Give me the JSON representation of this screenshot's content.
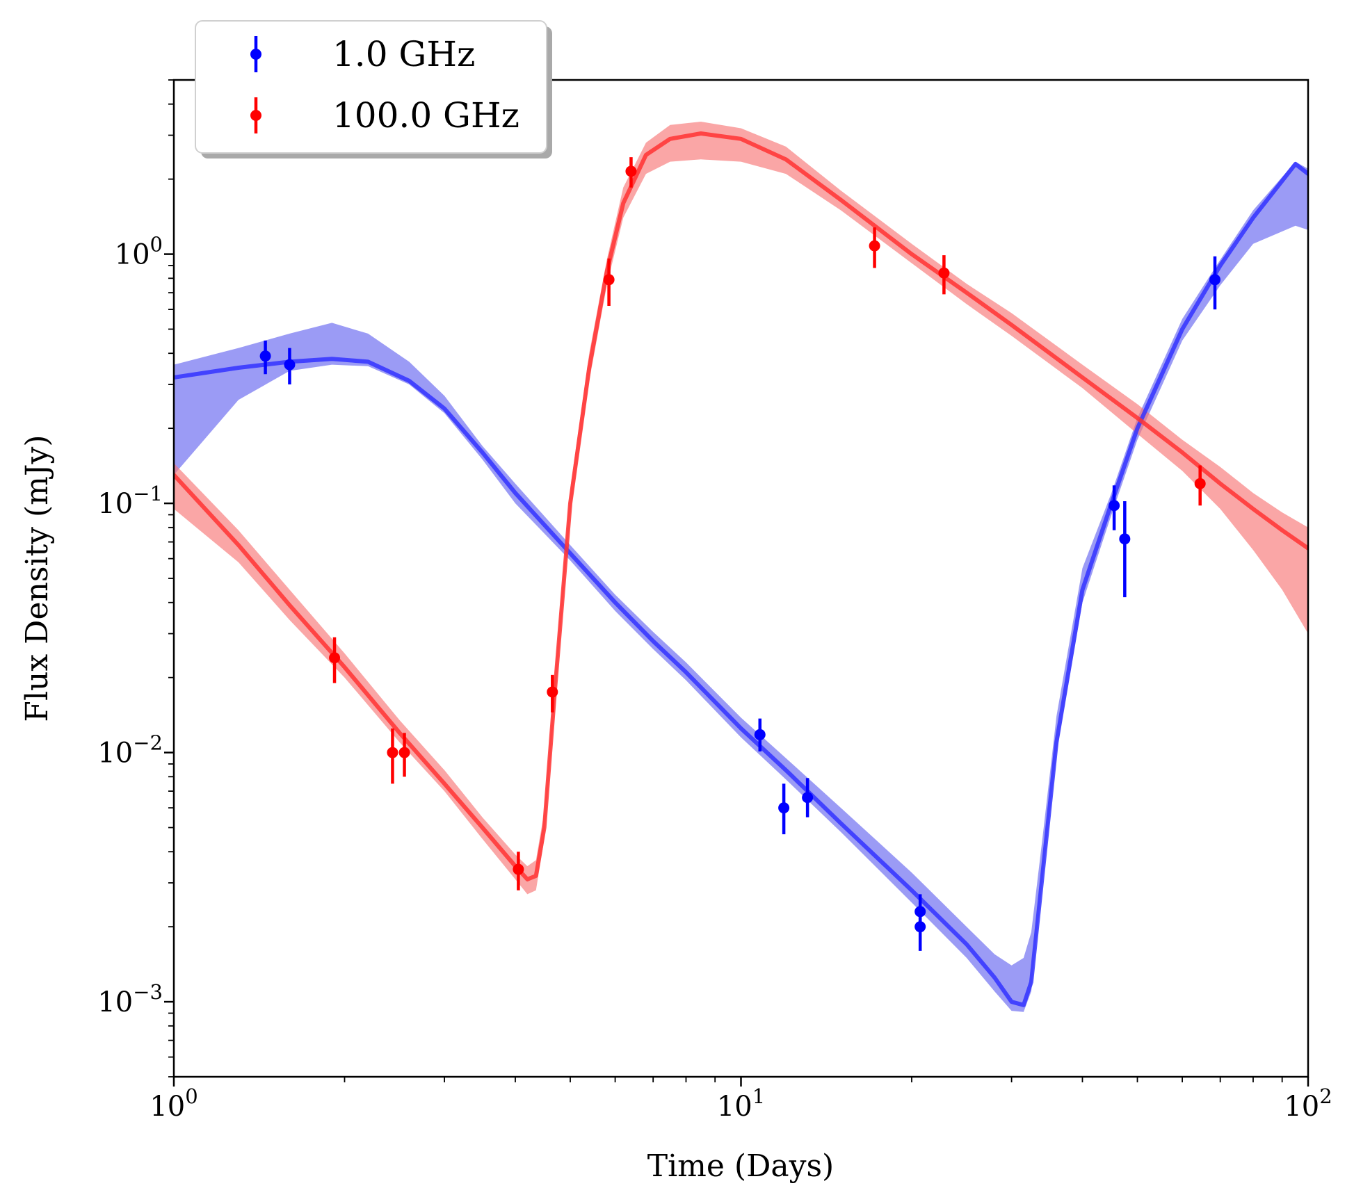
{
  "chart_data": {
    "type": "line",
    "title": "",
    "xlabel": "Time (Days)",
    "ylabel": "Flux Density (mJy)",
    "xscale": "log",
    "yscale": "log",
    "xlim": [
      1,
      100
    ],
    "ylim": [
      0.0005,
      5
    ],
    "grid": false,
    "legend": {
      "position": "top-left",
      "entries": [
        "1.0 GHz",
        "100.0 GHz"
      ]
    },
    "x_ticks": [
      {
        "value": 1,
        "base": "10",
        "exp": "0"
      },
      {
        "value": 10,
        "base": "10",
        "exp": "1"
      },
      {
        "value": 100,
        "base": "10",
        "exp": "2"
      }
    ],
    "y_ticks": [
      {
        "value": 0.001,
        "base": "10",
        "exp": "−3"
      },
      {
        "value": 0.01,
        "base": "10",
        "exp": "−2"
      },
      {
        "value": 0.1,
        "base": "10",
        "exp": "−1"
      },
      {
        "value": 1,
        "base": "10",
        "exp": "0"
      }
    ],
    "series": [
      {
        "name": "1.0 GHz",
        "color": "#0000ff",
        "model_color": "#3333ff",
        "band_color": "#6666f0",
        "points": [
          {
            "x": 1.45,
            "y": 0.39,
            "ylo": 0.33,
            "yhi": 0.45
          },
          {
            "x": 1.6,
            "y": 0.36,
            "ylo": 0.3,
            "yhi": 0.42
          },
          {
            "x": 10.8,
            "y": 0.0118,
            "ylo": 0.0101,
            "yhi": 0.0137
          },
          {
            "x": 11.9,
            "y": 0.006,
            "ylo": 0.0047,
            "yhi": 0.0075
          },
          {
            "x": 13.1,
            "y": 0.0066,
            "ylo": 0.0055,
            "yhi": 0.0079
          },
          {
            "x": 20.7,
            "y": 0.0023,
            "ylo": 0.0019,
            "yhi": 0.0027
          },
          {
            "x": 20.7,
            "y": 0.002,
            "ylo": 0.0016,
            "yhi": 0.0024
          },
          {
            "x": 45.5,
            "y": 0.098,
            "ylo": 0.078,
            "yhi": 0.118
          },
          {
            "x": 47.5,
            "y": 0.072,
            "ylo": 0.042,
            "yhi": 0.102
          },
          {
            "x": 68.5,
            "y": 0.79,
            "ylo": 0.6,
            "yhi": 0.98
          }
        ],
        "model": [
          {
            "x": 1.0,
            "y": 0.32,
            "lo": 0.13,
            "hi": 0.36
          },
          {
            "x": 1.3,
            "y": 0.35,
            "lo": 0.26,
            "hi": 0.42
          },
          {
            "x": 1.6,
            "y": 0.37,
            "lo": 0.34,
            "hi": 0.48
          },
          {
            "x": 1.9,
            "y": 0.38,
            "lo": 0.36,
            "hi": 0.53
          },
          {
            "x": 2.2,
            "y": 0.37,
            "lo": 0.355,
            "hi": 0.48
          },
          {
            "x": 2.6,
            "y": 0.31,
            "lo": 0.3,
            "hi": 0.37
          },
          {
            "x": 3.0,
            "y": 0.24,
            "lo": 0.23,
            "hi": 0.27
          },
          {
            "x": 3.5,
            "y": 0.16,
            "lo": 0.15,
            "hi": 0.17
          },
          {
            "x": 4.0,
            "y": 0.11,
            "lo": 0.1,
            "hi": 0.12
          },
          {
            "x": 5.0,
            "y": 0.063,
            "lo": 0.059,
            "hi": 0.068
          },
          {
            "x": 6.0,
            "y": 0.04,
            "lo": 0.037,
            "hi": 0.043
          },
          {
            "x": 7.0,
            "y": 0.028,
            "lo": 0.026,
            "hi": 0.0305
          },
          {
            "x": 8.0,
            "y": 0.021,
            "lo": 0.0195,
            "hi": 0.023
          },
          {
            "x": 10.0,
            "y": 0.0125,
            "lo": 0.0115,
            "hi": 0.0138
          },
          {
            "x": 12.0,
            "y": 0.0085,
            "lo": 0.0078,
            "hi": 0.0095
          },
          {
            "x": 15.0,
            "y": 0.0052,
            "lo": 0.0048,
            "hi": 0.006
          },
          {
            "x": 20.0,
            "y": 0.0028,
            "lo": 0.0025,
            "hi": 0.0033
          },
          {
            "x": 25.0,
            "y": 0.0017,
            "lo": 0.0015,
            "hi": 0.002
          },
          {
            "x": 28.0,
            "y": 0.00125,
            "lo": 0.0011,
            "hi": 0.00155
          },
          {
            "x": 30.0,
            "y": 0.001,
            "lo": 0.00092,
            "hi": 0.0014
          },
          {
            "x": 31.5,
            "y": 0.00097,
            "lo": 0.00091,
            "hi": 0.0015
          },
          {
            "x": 32.5,
            "y": 0.0012,
            "lo": 0.0011,
            "hi": 0.0019
          },
          {
            "x": 34.0,
            "y": 0.0032,
            "lo": 0.003,
            "hi": 0.0045
          },
          {
            "x": 36.0,
            "y": 0.011,
            "lo": 0.01,
            "hi": 0.014
          },
          {
            "x": 40.0,
            "y": 0.045,
            "lo": 0.04,
            "hi": 0.055
          },
          {
            "x": 45.0,
            "y": 0.1,
            "lo": 0.09,
            "hi": 0.11
          },
          {
            "x": 50.0,
            "y": 0.2,
            "lo": 0.18,
            "hi": 0.22
          },
          {
            "x": 60.0,
            "y": 0.5,
            "lo": 0.45,
            "hi": 0.55
          },
          {
            "x": 70.0,
            "y": 0.9,
            "lo": 0.75,
            "hi": 0.95
          },
          {
            "x": 80.0,
            "y": 1.4,
            "lo": 1.1,
            "hi": 1.5
          },
          {
            "x": 95.0,
            "y": 2.3,
            "lo": 1.3,
            "hi": 2.35
          },
          {
            "x": 100.0,
            "y": 2.1,
            "lo": 1.25,
            "hi": 2.2
          }
        ]
      },
      {
        "name": "100.0 GHz",
        "color": "#ff0000",
        "model_color": "#ff3333",
        "band_color": "#f77777",
        "points": [
          {
            "x": 1.92,
            "y": 0.024,
            "ylo": 0.019,
            "yhi": 0.029
          },
          {
            "x": 2.43,
            "y": 0.01,
            "ylo": 0.0075,
            "yhi": 0.0125
          },
          {
            "x": 2.55,
            "y": 0.01,
            "ylo": 0.008,
            "yhi": 0.012
          },
          {
            "x": 4.05,
            "y": 0.0034,
            "ylo": 0.0028,
            "yhi": 0.004
          },
          {
            "x": 4.65,
            "y": 0.0175,
            "ylo": 0.0145,
            "yhi": 0.0205
          },
          {
            "x": 5.85,
            "y": 0.79,
            "ylo": 0.62,
            "yhi": 0.96
          },
          {
            "x": 6.4,
            "y": 2.15,
            "ylo": 1.85,
            "yhi": 2.45
          },
          {
            "x": 17.2,
            "y": 1.08,
            "ylo": 0.88,
            "yhi": 1.28
          },
          {
            "x": 22.8,
            "y": 0.84,
            "ylo": 0.69,
            "yhi": 0.99
          },
          {
            "x": 64.5,
            "y": 0.12,
            "ylo": 0.098,
            "yhi": 0.142
          }
        ],
        "model": [
          {
            "x": 1.0,
            "y": 0.13,
            "lo": 0.095,
            "hi": 0.145
          },
          {
            "x": 1.3,
            "y": 0.068,
            "lo": 0.058,
            "hi": 0.078
          },
          {
            "x": 1.6,
            "y": 0.039,
            "lo": 0.034,
            "hi": 0.045
          },
          {
            "x": 2.0,
            "y": 0.022,
            "lo": 0.02,
            "hi": 0.025
          },
          {
            "x": 2.5,
            "y": 0.012,
            "lo": 0.011,
            "hi": 0.0135
          },
          {
            "x": 3.0,
            "y": 0.0075,
            "lo": 0.007,
            "hi": 0.0085
          },
          {
            "x": 3.5,
            "y": 0.005,
            "lo": 0.0045,
            "hi": 0.0055
          },
          {
            "x": 4.0,
            "y": 0.0035,
            "lo": 0.0031,
            "hi": 0.0039
          },
          {
            "x": 4.2,
            "y": 0.0031,
            "lo": 0.0027,
            "hi": 0.0035
          },
          {
            "x": 4.35,
            "y": 0.0032,
            "lo": 0.0028,
            "hi": 0.0037
          },
          {
            "x": 4.5,
            "y": 0.005,
            "lo": 0.0045,
            "hi": 0.0058
          },
          {
            "x": 4.7,
            "y": 0.018,
            "lo": 0.016,
            "hi": 0.021
          },
          {
            "x": 5.0,
            "y": 0.1,
            "lo": 0.09,
            "hi": 0.115
          },
          {
            "x": 5.4,
            "y": 0.35,
            "lo": 0.31,
            "hi": 0.4
          },
          {
            "x": 5.8,
            "y": 0.85,
            "lo": 0.75,
            "hi": 0.95
          },
          {
            "x": 6.2,
            "y": 1.6,
            "lo": 1.4,
            "hi": 1.85
          },
          {
            "x": 6.8,
            "y": 2.5,
            "lo": 2.1,
            "hi": 2.8
          },
          {
            "x": 7.5,
            "y": 2.9,
            "lo": 2.35,
            "hi": 3.3
          },
          {
            "x": 8.5,
            "y": 3.05,
            "lo": 2.4,
            "hi": 3.4
          },
          {
            "x": 10.0,
            "y": 2.9,
            "lo": 2.35,
            "hi": 3.2
          },
          {
            "x": 12.0,
            "y": 2.4,
            "lo": 2.1,
            "hi": 2.7
          },
          {
            "x": 15.0,
            "y": 1.65,
            "lo": 1.5,
            "hi": 1.8
          },
          {
            "x": 20.0,
            "y": 1.0,
            "lo": 0.92,
            "hi": 1.1
          },
          {
            "x": 25.0,
            "y": 0.7,
            "lo": 0.63,
            "hi": 0.76
          },
          {
            "x": 30.0,
            "y": 0.52,
            "lo": 0.47,
            "hi": 0.58
          },
          {
            "x": 40.0,
            "y": 0.32,
            "lo": 0.29,
            "hi": 0.36
          },
          {
            "x": 50.0,
            "y": 0.22,
            "lo": 0.19,
            "hi": 0.25
          },
          {
            "x": 60.0,
            "y": 0.16,
            "lo": 0.135,
            "hi": 0.18
          },
          {
            "x": 70.0,
            "y": 0.12,
            "lo": 0.095,
            "hi": 0.14
          },
          {
            "x": 80.0,
            "y": 0.095,
            "lo": 0.065,
            "hi": 0.11
          },
          {
            "x": 90.0,
            "y": 0.078,
            "lo": 0.045,
            "hi": 0.092
          },
          {
            "x": 100.0,
            "y": 0.066,
            "lo": 0.03,
            "hi": 0.08
          }
        ]
      }
    ]
  }
}
